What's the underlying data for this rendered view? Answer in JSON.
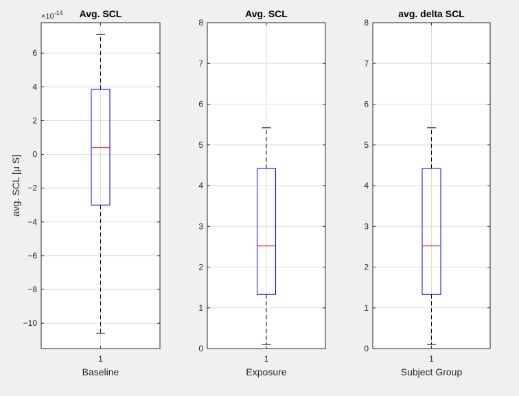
{
  "chart_data": [
    {
      "type": "box",
      "title": "Avg. SCL",
      "xlabel": "Baseline",
      "ylabel": "avg. SCL [μ S]",
      "categories": [
        "1"
      ],
      "y_exponent_label": "×10",
      "y_exponent": "-14",
      "yticks": [
        6,
        4,
        2,
        0,
        -2,
        -4,
        -6,
        -8,
        -10
      ],
      "ylim": [
        -11.5,
        7.8
      ],
      "grid": true,
      "box": {
        "whisker_low": -10.6,
        "q1": -3.0,
        "median": 0.4,
        "q3": 3.85,
        "whisker_high": 7.1
      }
    },
    {
      "type": "box",
      "title": "Avg. SCL",
      "xlabel": "Exposure",
      "ylabel": "",
      "categories": [
        "1"
      ],
      "yticks": [
        8,
        7,
        6,
        5,
        4,
        3,
        2,
        1,
        0
      ],
      "ylim": [
        0,
        8
      ],
      "grid": true,
      "box": {
        "whisker_low": 0.1,
        "q1": 1.33,
        "median": 2.52,
        "q3": 4.42,
        "whisker_high": 5.42
      }
    },
    {
      "type": "box",
      "title": "avg. delta SCL",
      "xlabel": "Subject Group",
      "ylabel": "",
      "categories": [
        "1"
      ],
      "yticks": [
        8,
        7,
        6,
        5,
        4,
        3,
        2,
        1,
        0
      ],
      "ylim": [
        0,
        8
      ],
      "grid": true,
      "box": {
        "whisker_low": 0.1,
        "q1": 1.33,
        "median": 2.52,
        "q3": 4.42,
        "whisker_high": 5.42
      }
    }
  ],
  "colors": {
    "box": "#0000ff",
    "median": "#ff0000",
    "whisker": "#000000",
    "grid": "#dcdcdc",
    "axes_bg": "#ffffff",
    "figure_bg": "#f0f0f0"
  }
}
